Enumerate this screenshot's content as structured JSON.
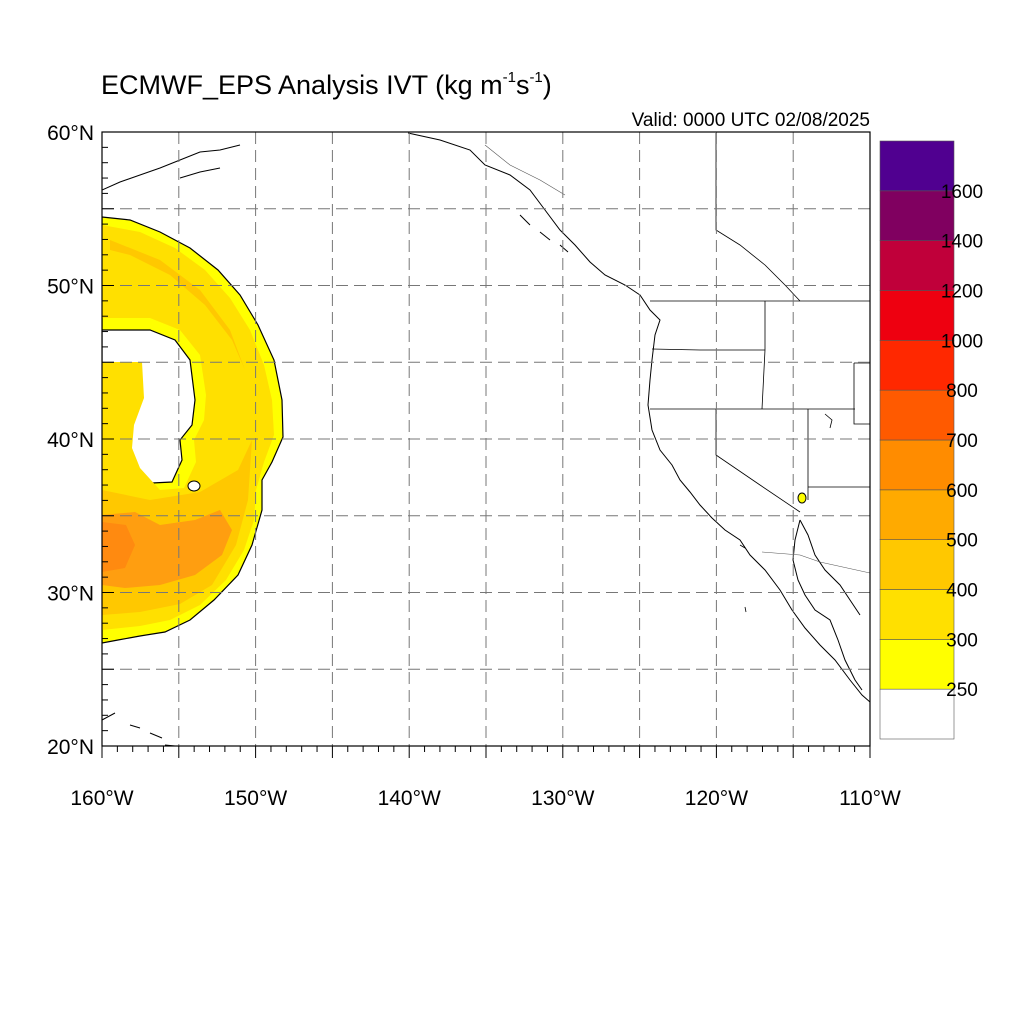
{
  "title": {
    "main": "ECMWF_EPS Analysis IVT (kg m",
    "exp1": "-1",
    "mid": "s",
    "exp2": "-1",
    "end": ")"
  },
  "valid_time": "Valid: 0000 UTC 02/08/2025",
  "map": {
    "lon_range": [
      -160,
      -110
    ],
    "lat_range": [
      20,
      60
    ],
    "lat_labels": [
      {
        "lat": 60,
        "text": "60°N"
      },
      {
        "lat": 50,
        "text": "50°N"
      },
      {
        "lat": 40,
        "text": "40°N"
      },
      {
        "lat": 30,
        "text": "30°N"
      },
      {
        "lat": 20,
        "text": "20°N"
      }
    ],
    "lon_labels": [
      {
        "lon": -160,
        "text": "160°W"
      },
      {
        "lon": -150,
        "text": "150°W"
      },
      {
        "lon": -140,
        "text": "140°W"
      },
      {
        "lon": -130,
        "text": "130°W"
      },
      {
        "lon": -120,
        "text": "120°W"
      },
      {
        "lon": -110,
        "text": "110°W"
      }
    ],
    "grid_spacing_deg": 5
  },
  "colorbar": {
    "colors": [
      "#ffffff",
      "#ffff00",
      "#ffe000",
      "#ffc800",
      "#ffaa00",
      "#ff8c00",
      "#ff5a00",
      "#ff2800",
      "#ee0010",
      "#c0003a",
      "#800060",
      "#500090"
    ],
    "labels": [
      "250",
      "300",
      "400",
      "500",
      "600",
      "700",
      "800",
      "1000",
      "1200",
      "1400",
      "1600"
    ]
  },
  "ivt_region": {
    "description_levels": [
      "250",
      "300",
      "400",
      "500"
    ]
  }
}
